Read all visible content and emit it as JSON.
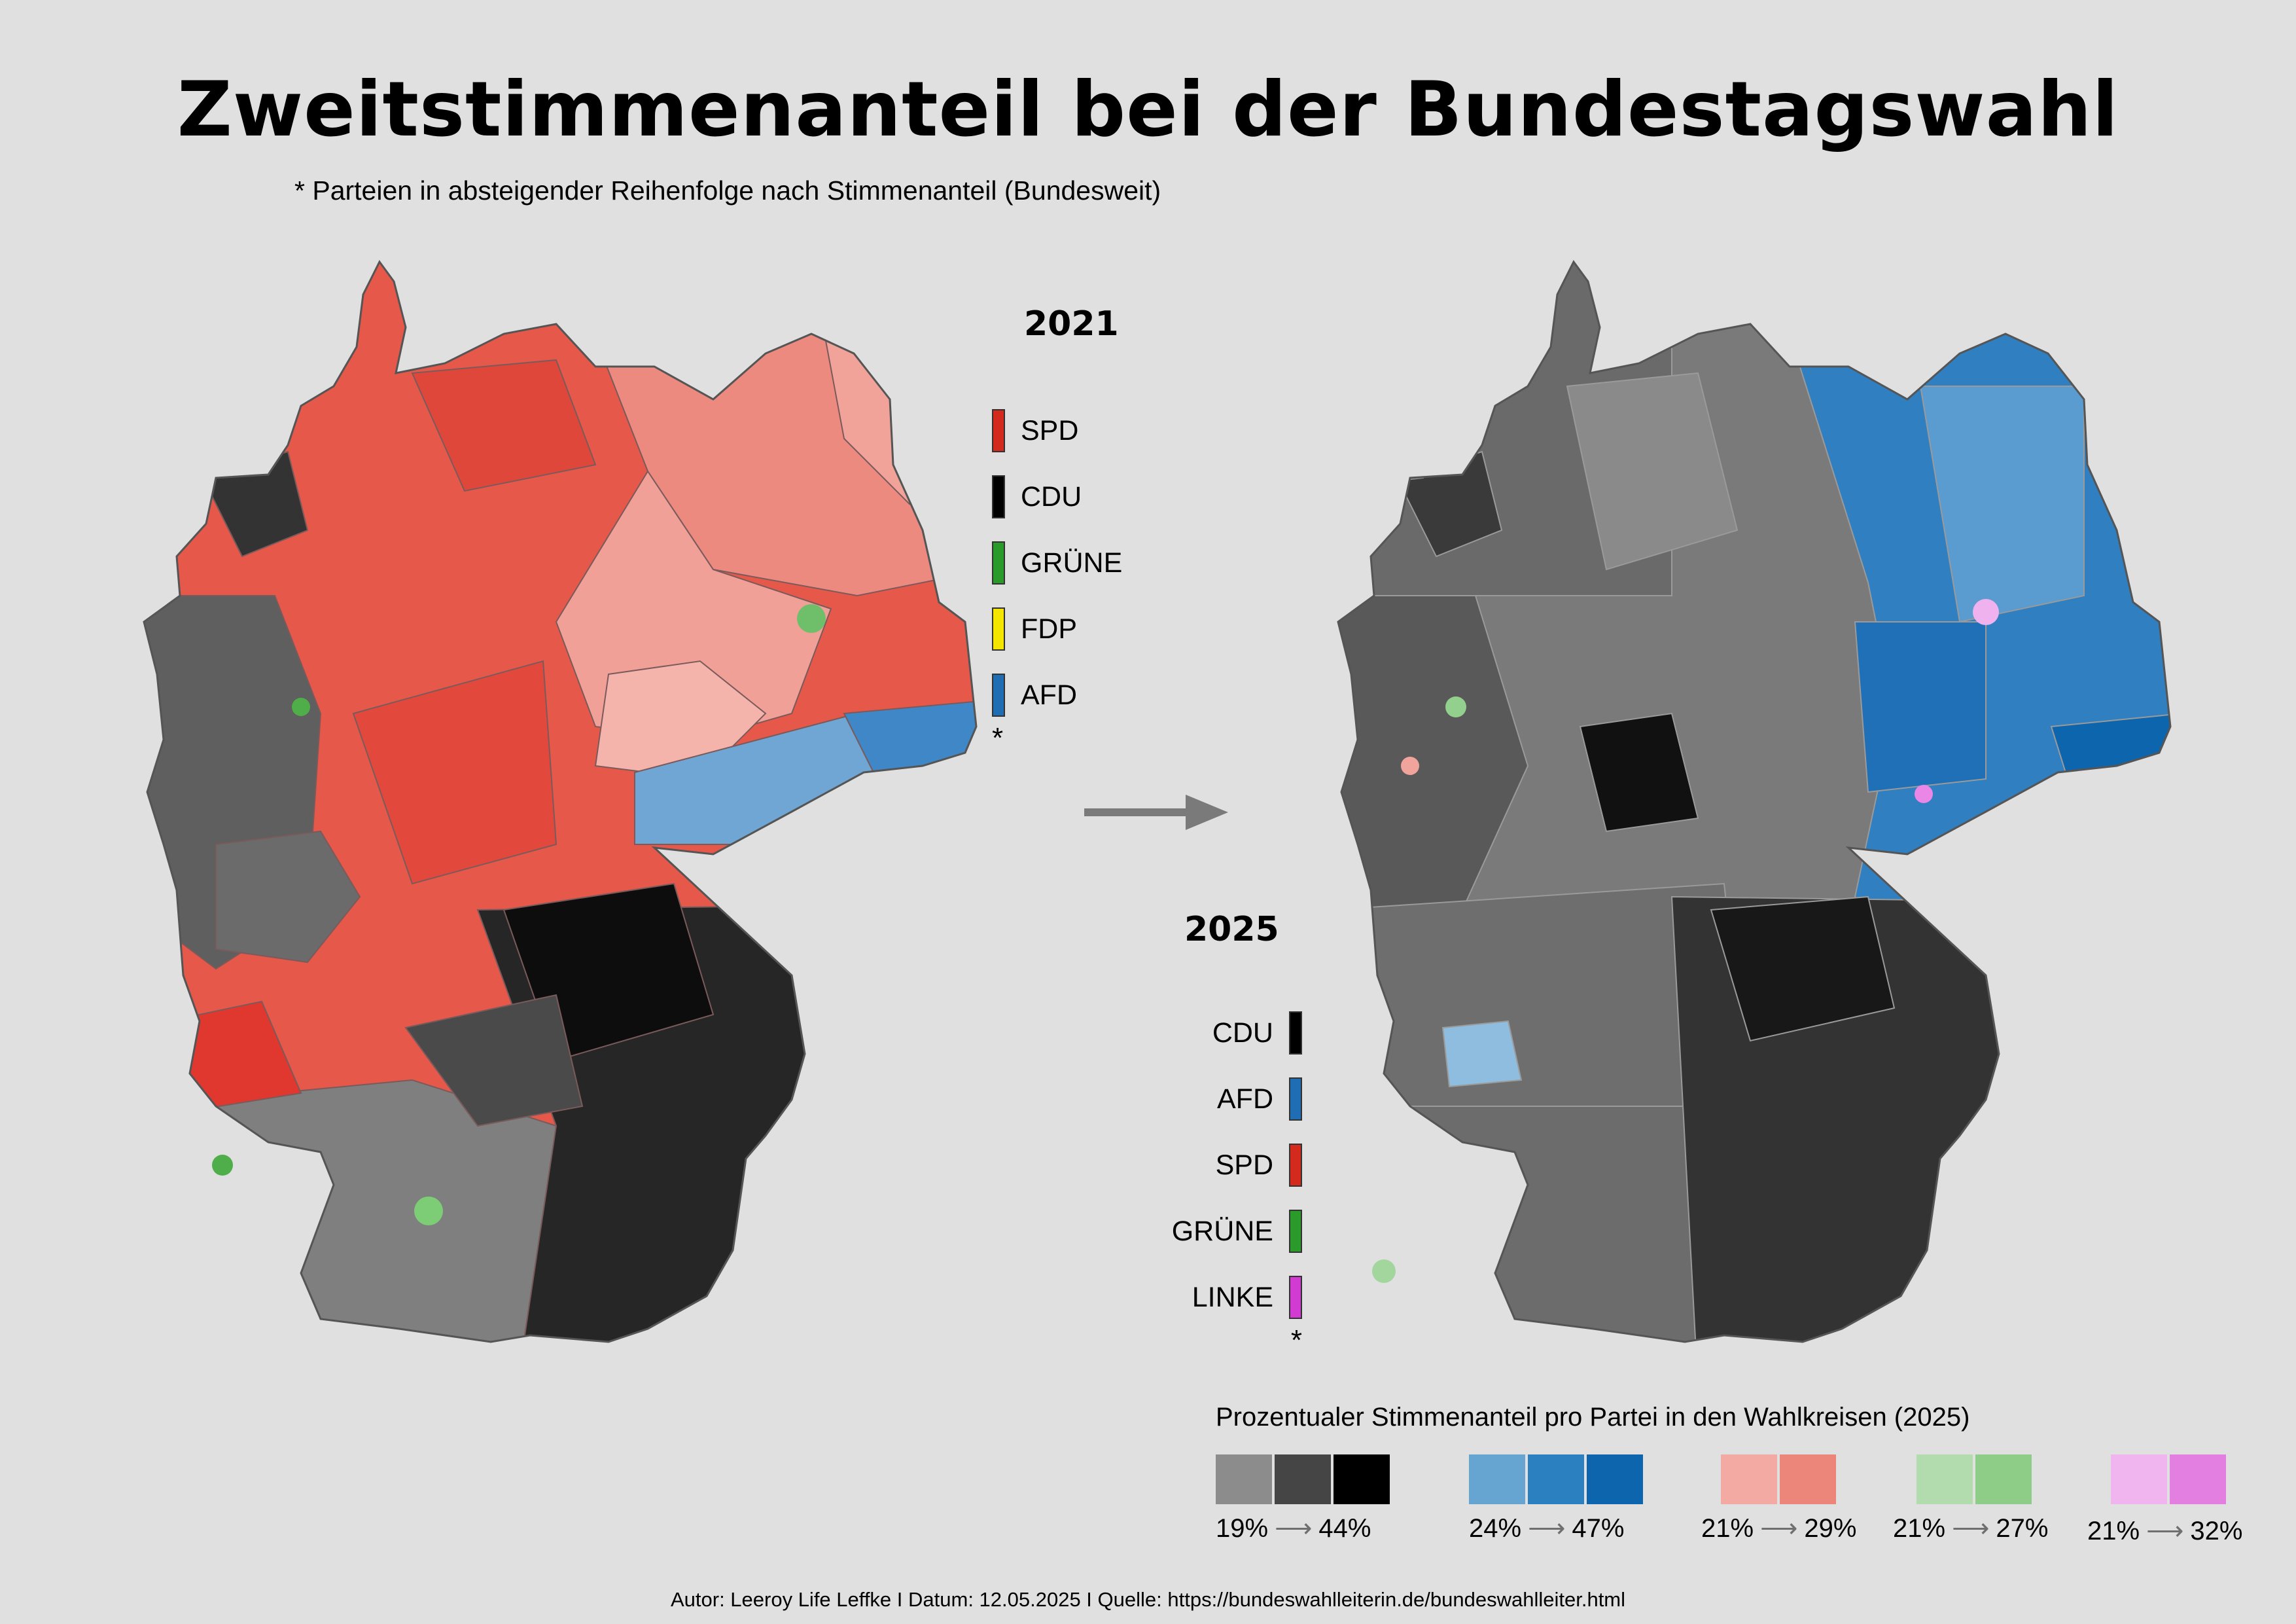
{
  "title": "Zweitstimmenanteil bei der Bundestagswahl",
  "subtitle": "* Parteien in absteigender Reihenfolge nach Stimmenanteil (Bundesweit)",
  "legend_2021": {
    "year": "2021",
    "items": [
      {
        "label": "SPD",
        "color": "#d42a1e"
      },
      {
        "label": "CDU",
        "color": "#000000"
      },
      {
        "label": "GRÜNE",
        "color": "#2a9a2a"
      },
      {
        "label": "FDP",
        "color": "#f5e600"
      },
      {
        "label": "AFD",
        "color": "#1f6db3"
      }
    ],
    "note": "*"
  },
  "legend_2025": {
    "year": "2025",
    "items": [
      {
        "label": "CDU",
        "color": "#000000"
      },
      {
        "label": "AFD",
        "color": "#1f6db3"
      },
      {
        "label": "SPD",
        "color": "#d42a1e"
      },
      {
        "label": "GRÜNE",
        "color": "#2a9a2a"
      },
      {
        "label": "LINKE",
        "color": "#d13bd1"
      }
    ],
    "note": "*"
  },
  "scale_legend": {
    "title": "Prozentualer Stimmenanteil pro Partei in den Wahlkreisen (2025)",
    "parties": [
      {
        "colors": [
          "#8c8c8c",
          "#454545",
          "#000000"
        ],
        "min": "19%",
        "max": "44%"
      },
      {
        "colors": [
          "#66a5d2",
          "#2b80c0",
          "#0d66ad"
        ],
        "min": "24%",
        "max": "47%"
      },
      {
        "colors": [
          "#f2aaa2",
          "#ec857a"
        ],
        "min": "21%",
        "max": "29%"
      },
      {
        "colors": [
          "#b2dcad",
          "#8dcd88"
        ],
        "min": "21%",
        "max": "27%"
      },
      {
        "colors": [
          "#f0b4ee",
          "#e47fe2"
        ],
        "min": "21%",
        "max": "32%"
      }
    ]
  },
  "footer": "Autor: Leeroy Life Leffke I Datum: 12.05.2025 I Quelle: https://bundeswahlleiterin.de/bundeswahlleiter.html"
}
